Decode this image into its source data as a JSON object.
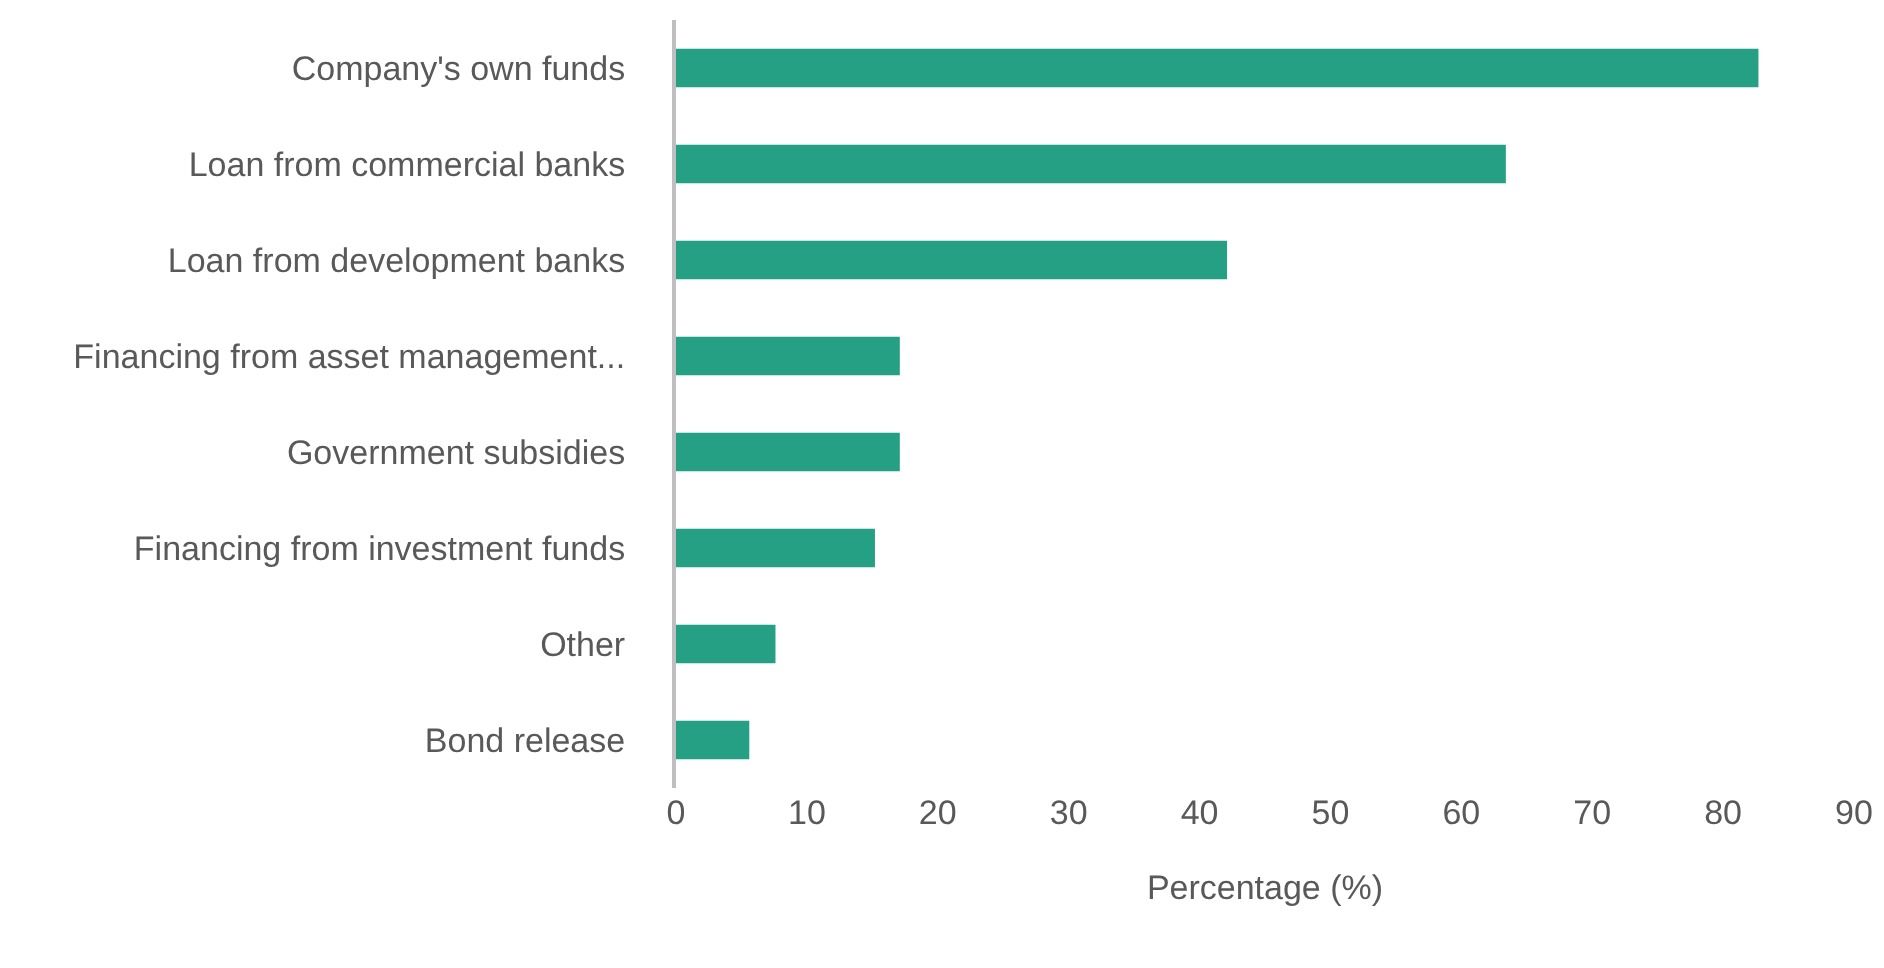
{
  "chart_data": {
    "type": "bar",
    "orientation": "horizontal",
    "xlabel": "Percentage (%)",
    "categories": [
      "Company's own funds",
      "Loan from commercial banks",
      "Loan from development banks",
      "Financing from asset management...",
      "Government subsidies",
      "Financing from investment funds",
      "Other",
      "Bond release"
    ],
    "values": [
      82.7,
      63.4,
      42.1,
      17.1,
      17.1,
      15.2,
      7.6,
      5.6
    ],
    "color": "#26a084",
    "xlim": [
      0,
      90
    ],
    "xticks": [
      0,
      10,
      20,
      30,
      40,
      50,
      60,
      70,
      80,
      90
    ],
    "grid": false,
    "legend": false
  }
}
